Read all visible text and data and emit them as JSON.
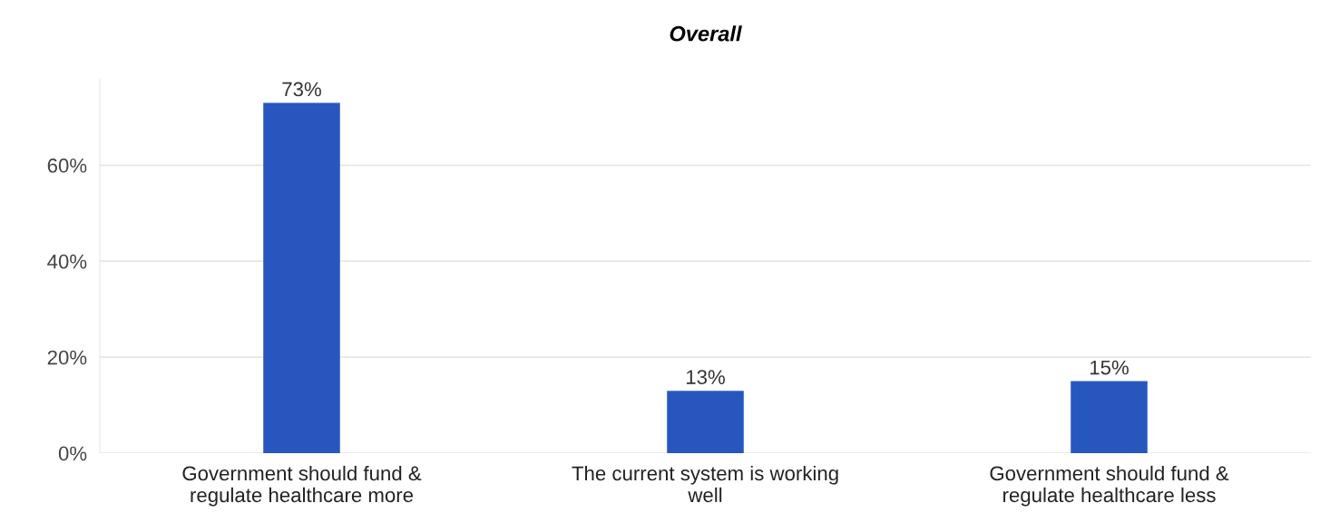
{
  "chart_data": {
    "type": "bar",
    "title": "Overall",
    "categories": [
      "Government should fund &\nregulate healthcare more",
      "The current system is working\nwell",
      "Government should fund &\nregulate healthcare less"
    ],
    "values": [
      73,
      13,
      15
    ],
    "color": "#2757be",
    "value_labels": [
      "73%",
      "13%",
      "15%"
    ],
    "ylim": [
      0,
      78
    ],
    "yticks": [
      {
        "value": 0,
        "label": "0%"
      },
      {
        "value": 20,
        "label": "20%"
      },
      {
        "value": 40,
        "label": "40%"
      },
      {
        "value": 60,
        "label": "60%"
      }
    ],
    "grid": "y"
  }
}
